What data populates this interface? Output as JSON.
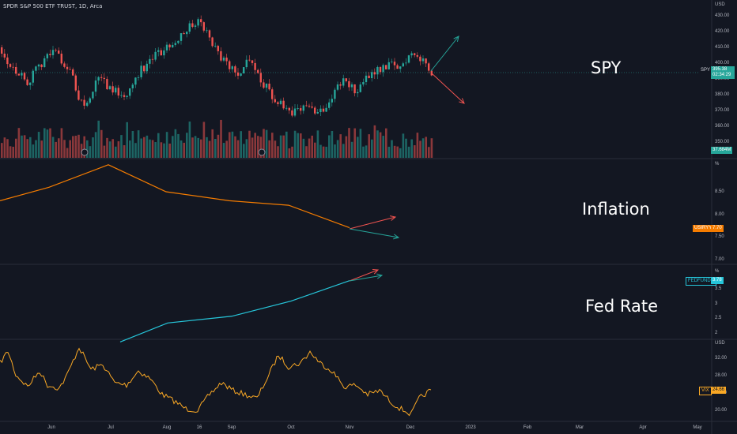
{
  "header": {
    "symbol_line": "SPDR S&P 500 ETF TRUST, 1D, Arca"
  },
  "colors": {
    "background": "#131722",
    "up": "#26a69a",
    "down": "#ef5350",
    "inflation": "#f57c00",
    "fed": "#26c6da",
    "vix": "#f9a825"
  },
  "panes": {
    "spy": {
      "label": "SPY",
      "unit": "USD",
      "ticks": [
        "430.00",
        "420.00",
        "410.00",
        "400.00",
        "390.00",
        "380.00",
        "370.00",
        "360.00",
        "350.00"
      ],
      "price_tag": "SPY",
      "price_value": "395.38",
      "countdown": "02:34:29",
      "volume_tag": "37.684M"
    },
    "inflation": {
      "label": "Inflation",
      "unit": "%",
      "ticks": [
        "8.50",
        "8.00",
        "7.50",
        "7.00"
      ],
      "tag": "USIRYY",
      "value": "7.70"
    },
    "fed": {
      "label": "Fed Rate",
      "unit": "%",
      "ticks": [
        "3.5",
        "3",
        "2.5",
        "2"
      ],
      "tag": "FEDFUNDS",
      "value": "3.78"
    },
    "vix": {
      "unit": "USD",
      "ticks": [
        "32.00",
        "28.00",
        "24.00",
        "20.00"
      ],
      "tag": "VIX",
      "value": "24.66"
    }
  },
  "x_axis": [
    "Jun",
    "Jul",
    "Aug",
    "16",
    "Sep",
    "Oct",
    "Nov",
    "Dec",
    "2023",
    "Feb",
    "Mar",
    "Apr",
    "May"
  ],
  "chart_data": [
    {
      "type": "line",
      "title": "Inflation",
      "x": [
        "May",
        "Jun",
        "Jul",
        "Aug",
        "Sep",
        "Oct",
        "Nov"
      ],
      "series": [
        {
          "name": "USIRYY",
          "values": [
            8.3,
            8.6,
            9.1,
            8.5,
            8.3,
            8.2,
            7.7
          ]
        }
      ],
      "ylim": [
        6.9,
        9.2
      ]
    },
    {
      "type": "line",
      "title": "Fed Rate",
      "x": [
        "Jul",
        "Aug",
        "Sep",
        "Oct",
        "Nov"
      ],
      "series": [
        {
          "name": "FEDFUNDS",
          "values": [
            1.68,
            2.33,
            2.56,
            3.08,
            3.78
          ]
        }
      ],
      "ylim": [
        1.9,
        4.2
      ]
    }
  ]
}
